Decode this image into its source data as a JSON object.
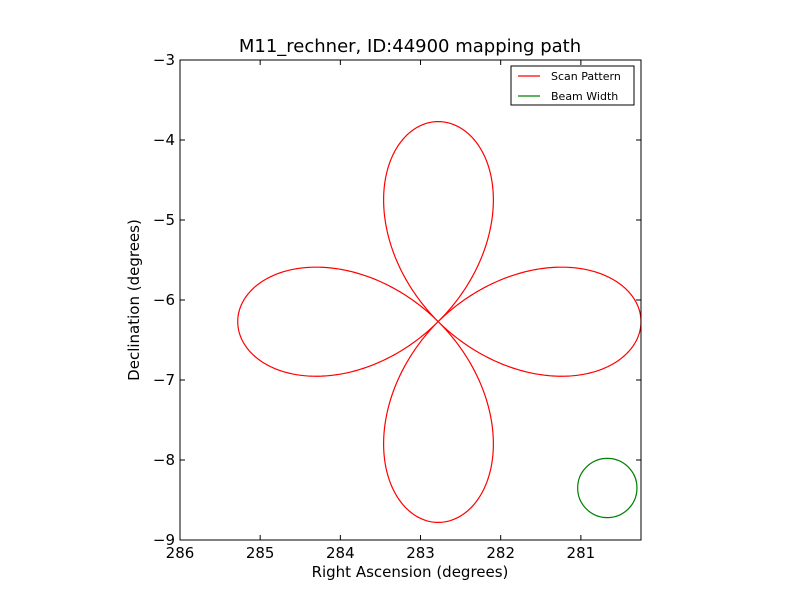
{
  "chart_data": {
    "type": "line",
    "title": "M11_rechner, ID:44900 mapping path",
    "xlabel": "Right Ascension (degrees)",
    "ylabel": "Declination (degrees)",
    "xlim": [
      286.0,
      280.25
    ],
    "ylim": [
      -9.0,
      -3.0
    ],
    "x_inverted": true,
    "xticks": [
      286,
      285,
      284,
      283,
      282,
      281
    ],
    "xtick_labels": [
      "286",
      "285",
      "284",
      "283",
      "282",
      "281"
    ],
    "yticks": [
      -9,
      -8,
      -7,
      -6,
      -5,
      -4,
      -3
    ],
    "ytick_labels": [
      "−9",
      "−8",
      "−7",
      "−6",
      "−5",
      "−4",
      "−3"
    ],
    "grid": false,
    "legend_position": "top-right",
    "series": [
      {
        "name": "Scan Pattern",
        "kind": "rose_scan",
        "color": "#ff0000",
        "center": [
          282.78,
          -6.27
        ],
        "petal_ends": {
          "east": 285.28,
          "west": 280.25,
          "north": -3.77,
          "south": -8.78
        }
      },
      {
        "name": "Beam Width",
        "kind": "circle",
        "color": "#008000",
        "center": [
          280.67,
          -8.35
        ],
        "radius": 0.37
      }
    ]
  }
}
